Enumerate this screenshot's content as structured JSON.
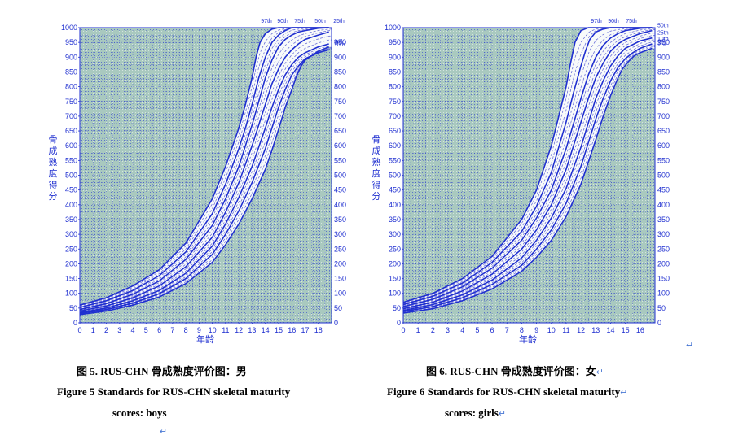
{
  "chart_data": [
    {
      "type": "line",
      "ylabel": "骨成熟度得分",
      "xlabel": "年龄",
      "xlim": [
        0,
        19
      ],
      "ylim": [
        0,
        1000
      ],
      "x_ticks": [
        "0",
        "1",
        "2",
        "3",
        "4",
        "5",
        "6",
        "7",
        "8",
        "9",
        "10",
        "11",
        "12",
        "13",
        "14",
        "15",
        "16",
        "17",
        "18"
      ],
      "y_ticks": [
        "0",
        "50",
        "100",
        "150",
        "200",
        "250",
        "300",
        "350",
        "400",
        "450",
        "500",
        "550",
        "600",
        "650",
        "700",
        "750",
        "800",
        "850",
        "900",
        "950",
        "1000"
      ],
      "grid": true,
      "percentile_labels_top": [
        "97th",
        "90th",
        "75th",
        "50th",
        "25th"
      ],
      "percentile_labels_right": [
        "10th",
        "3rd"
      ],
      "series": [
        {
          "name": "97th",
          "style": "solid",
          "x": [
            0,
            2,
            4,
            6,
            8,
            10,
            11,
            12,
            12.5,
            13,
            13.3,
            13.6,
            14,
            14.5,
            15,
            16,
            17,
            18,
            18.8
          ],
          "y": [
            60,
            85,
            125,
            180,
            270,
            420,
            530,
            660,
            740,
            830,
            900,
            950,
            980,
            995,
            1000,
            1000,
            1000,
            1000,
            1000
          ]
        },
        {
          "name": "90th",
          "style": "solid",
          "x": [
            0,
            2,
            4,
            6,
            8,
            10,
            11,
            12,
            12.5,
            13,
            13.5,
            14,
            14.5,
            15,
            15.5,
            16,
            17,
            18,
            18.8
          ],
          "y": [
            52,
            75,
            110,
            160,
            240,
            370,
            470,
            590,
            660,
            740,
            830,
            900,
            950,
            975,
            990,
            1000,
            1000,
            1000,
            1000
          ]
        },
        {
          "name": "75th",
          "style": "solid",
          "x": [
            0,
            2,
            4,
            6,
            8,
            10,
            11,
            12,
            13,
            13.5,
            14,
            14.5,
            15,
            15.5,
            16,
            16.5,
            17,
            18,
            18.8
          ],
          "y": [
            45,
            65,
            97,
            142,
            215,
            330,
            420,
            530,
            670,
            750,
            830,
            890,
            935,
            960,
            975,
            985,
            990,
            998,
            1000
          ]
        },
        {
          "name": "50th",
          "style": "solid",
          "x": [
            0,
            2,
            4,
            6,
            8,
            10,
            11,
            12,
            13,
            13.5,
            14,
            14.5,
            15,
            15.5,
            16,
            16.5,
            17,
            18,
            18.8
          ],
          "y": [
            40,
            57,
            85,
            125,
            190,
            290,
            375,
            475,
            600,
            670,
            740,
            810,
            860,
            900,
            925,
            945,
            960,
            975,
            985
          ]
        },
        {
          "name": "25th",
          "style": "solid",
          "x": [
            0,
            2,
            4,
            6,
            8,
            10,
            11,
            12,
            13,
            14,
            14.5,
            15,
            15.5,
            16,
            16.5,
            17,
            18,
            18.8
          ],
          "y": [
            35,
            50,
            75,
            110,
            168,
            260,
            335,
            425,
            530,
            660,
            730,
            790,
            840,
            875,
            900,
            915,
            935,
            945
          ]
        },
        {
          "name": "10th",
          "style": "solid",
          "x": [
            0,
            2,
            4,
            6,
            8,
            10,
            11,
            12,
            13,
            14,
            14.5,
            15,
            15.5,
            16,
            16.5,
            17,
            18,
            18.8
          ],
          "y": [
            32,
            45,
            67,
            99,
            150,
            232,
            300,
            380,
            475,
            590,
            660,
            730,
            790,
            840,
            870,
            895,
            915,
            925
          ]
        },
        {
          "name": "3rd",
          "style": "solid",
          "x": [
            0,
            2,
            4,
            6,
            8,
            10,
            11,
            12,
            13,
            14,
            14.5,
            15,
            15.5,
            16,
            16.3,
            16.7,
            17,
            17.5,
            18,
            18.8
          ],
          "y": [
            28,
            40,
            60,
            88,
            133,
            205,
            265,
            335,
            420,
            520,
            585,
            655,
            730,
            790,
            830,
            870,
            890,
            905,
            920,
            935
          ]
        }
      ]
    },
    {
      "type": "line",
      "ylabel": "骨成熟度得分",
      "xlabel": "年龄",
      "xlim": [
        0,
        17
      ],
      "ylim": [
        0,
        1000
      ],
      "x_ticks": [
        "0",
        "1",
        "2",
        "3",
        "4",
        "5",
        "6",
        "7",
        "8",
        "9",
        "10",
        "11",
        "12",
        "13",
        "14",
        "15",
        "16"
      ],
      "y_ticks": [
        "0",
        "50",
        "100",
        "150",
        "200",
        "250",
        "300",
        "350",
        "400",
        "450",
        "500",
        "550",
        "600",
        "650",
        "700",
        "750",
        "800",
        "850",
        "900",
        "950",
        "1000"
      ],
      "grid": true,
      "percentile_labels_top": [
        "97th",
        "90th",
        "75th"
      ],
      "percentile_labels_right": [
        "50th",
        "25th",
        "10th",
        "3rd"
      ],
      "series": [
        {
          "name": "97th",
          "style": "solid",
          "x": [
            0,
            2,
            4,
            6,
            8,
            9,
            10,
            10.5,
            11,
            11.3,
            11.6,
            12,
            12.5,
            13,
            14,
            15,
            16,
            16.8
          ],
          "y": [
            70,
            100,
            150,
            225,
            350,
            450,
            600,
            700,
            800,
            880,
            950,
            990,
            1000,
            1000,
            1000,
            1000,
            1000,
            1000
          ]
        },
        {
          "name": "90th",
          "style": "solid",
          "x": [
            0,
            2,
            4,
            6,
            8,
            9,
            10,
            11,
            11.5,
            12,
            12.3,
            12.6,
            13,
            13.5,
            14,
            15,
            16,
            16.8
          ],
          "y": [
            62,
            90,
            135,
            205,
            310,
            395,
            510,
            680,
            780,
            870,
            920,
            960,
            985,
            995,
            1000,
            1000,
            1000,
            1000
          ]
        },
        {
          "name": "75th",
          "style": "solid",
          "x": [
            0,
            2,
            4,
            6,
            8,
            9,
            10,
            11,
            12,
            12.5,
            13,
            13.5,
            14,
            14.5,
            15,
            16,
            16.8
          ],
          "y": [
            55,
            80,
            122,
            185,
            280,
            355,
            450,
            590,
            760,
            840,
            900,
            940,
            965,
            980,
            990,
            998,
            1000
          ]
        },
        {
          "name": "50th",
          "style": "solid",
          "x": [
            0,
            2,
            4,
            6,
            8,
            9,
            10,
            11,
            12,
            12.5,
            13,
            13.5,
            14,
            14.5,
            15,
            16,
            16.8
          ],
          "y": [
            48,
            70,
            108,
            165,
            250,
            315,
            400,
            520,
            680,
            760,
            830,
            880,
            920,
            945,
            960,
            980,
            990
          ]
        },
        {
          "name": "25th",
          "style": "solid",
          "x": [
            0,
            2,
            4,
            6,
            8,
            9,
            10,
            11,
            12,
            13,
            13.5,
            14,
            14.5,
            15,
            16,
            16.8
          ],
          "y": [
            42,
            62,
            95,
            145,
            220,
            280,
            355,
            455,
            595,
            760,
            820,
            870,
            905,
            930,
            955,
            965
          ]
        },
        {
          "name": "10th",
          "style": "solid",
          "x": [
            0,
            2,
            4,
            6,
            8,
            9,
            10,
            11,
            12,
            13,
            13.5,
            14,
            14.5,
            15,
            15.5,
            16,
            16.8
          ],
          "y": [
            38,
            55,
            85,
            130,
            195,
            250,
            315,
            405,
            530,
            690,
            760,
            820,
            865,
            895,
            915,
            930,
            945
          ]
        },
        {
          "name": "3rd",
          "style": "solid",
          "x": [
            0,
            2,
            4,
            6,
            8,
            9,
            10,
            11,
            12,
            13,
            13.5,
            14,
            14.5,
            14.8,
            15.2,
            15.6,
            16,
            16.8
          ],
          "y": [
            33,
            48,
            75,
            115,
            175,
            222,
            280,
            360,
            470,
            620,
            700,
            770,
            830,
            860,
            885,
            905,
            915,
            930
          ]
        }
      ]
    }
  ],
  "captions": {
    "boys_cn": "图 5. RUS-CHN 骨成熟度评价图：男",
    "boys_en_line1": "Figure 5 Standards for RUS-CHN skeletal maturity",
    "boys_en_line2": "scores: boys",
    "girls_cn": "图 6. RUS-CHN 骨成熟度评价图：女",
    "girls_en_line1": "Figure 6 Standards for RUS-CHN skeletal maturity",
    "girls_en_line2": "scores: girls",
    "paragraph_mark": "↵"
  },
  "colors": {
    "plot_bg": "#a9c9bf",
    "grid_dots": "#1f2fd0",
    "axis": "#1f2fd0",
    "curve": "#1f2fd0",
    "band_fill": "#ffffff",
    "inner_dash": "#6b6fd8"
  }
}
